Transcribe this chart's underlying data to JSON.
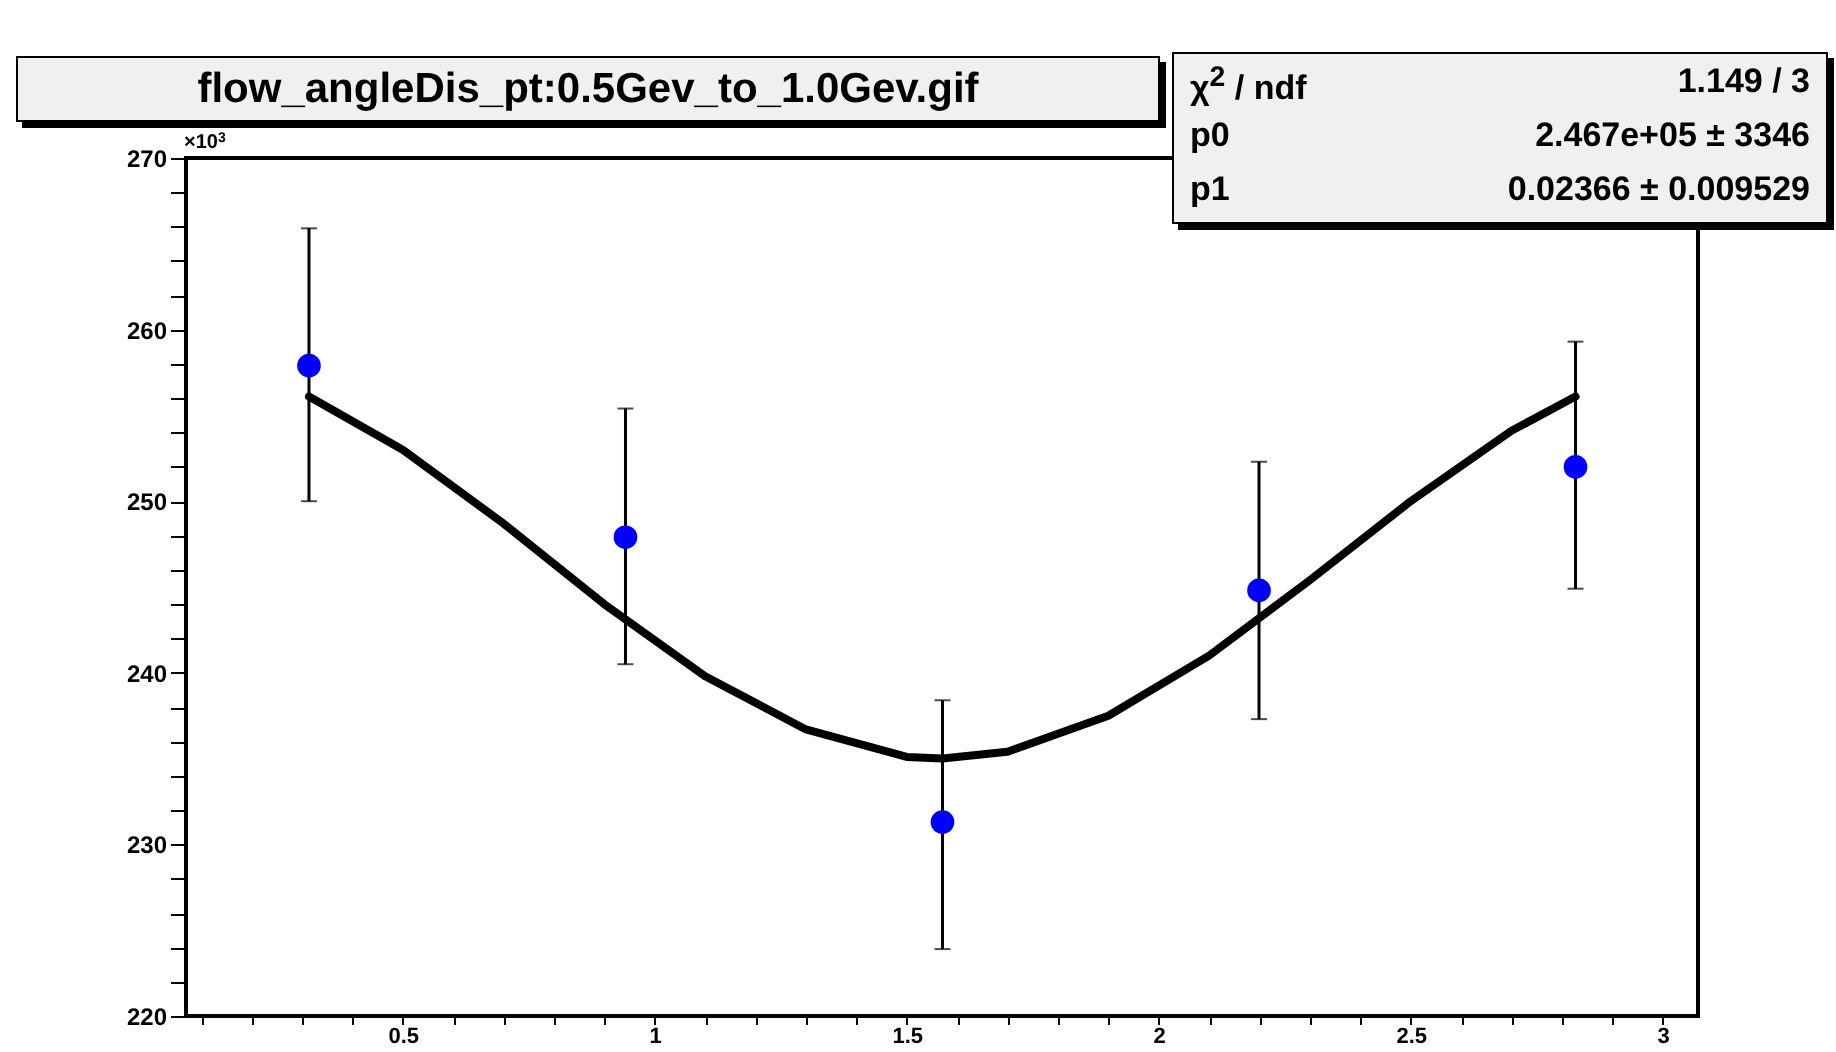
{
  "chart_data": {
    "type": "scatter",
    "title": "flow_angleDis_pt:0.5Gev_to_1.0Gev.gif",
    "annotations": [
      "×10$^{3}$",
      "χ$^{2}$ / ndf",
      "1.149 / 3",
      "p0",
      "2.467e+05 ± 3346",
      "p1",
      "0.02366 ± 0.009529"
    ],
    "xlim": [
      0.07,
      3.07
    ],
    "xticks": [
      {
        "value": 0.1,
        "label": null
      },
      {
        "value": 0.2,
        "label": null
      },
      {
        "value": 0.3,
        "label": null
      },
      {
        "value": 0.4,
        "label": null
      },
      0.5,
      {
        "value": 0.6,
        "label": null
      },
      {
        "value": 0.7,
        "label": null
      },
      {
        "value": 0.8,
        "label": null
      },
      {
        "value": 0.9,
        "label": null
      },
      1,
      {
        "value": 1.1,
        "label": null
      },
      {
        "value": 1.2,
        "label": null
      },
      {
        "value": 1.3,
        "label": null
      },
      {
        "value": 1.4,
        "label": null
      },
      1.5,
      {
        "value": 1.6,
        "label": null
      },
      {
        "value": 1.7,
        "label": null
      },
      {
        "value": 1.8,
        "label": null
      },
      {
        "value": 1.9,
        "label": null
      },
      2,
      {
        "value": 2.1,
        "label": null
      },
      {
        "value": 2.2,
        "label": null
      },
      {
        "value": 2.3,
        "label": null
      },
      {
        "value": 2.4,
        "label": null
      },
      2.5,
      {
        "value": 2.6,
        "label": null
      },
      {
        "value": 2.7,
        "label": null
      },
      {
        "value": 2.8,
        "label": null
      },
      {
        "value": 2.9,
        "label": null
      },
      3
    ],
    "ylim": [
      220,
      270
    ],
    "yticks": [
      220,
      {
        "value": 222,
        "label": null
      },
      {
        "value": 224,
        "label": null
      },
      {
        "value": 226,
        "label": null
      },
      {
        "value": 228,
        "label": null
      },
      230,
      {
        "value": 232,
        "label": null
      },
      {
        "value": 234,
        "label": null
      },
      {
        "value": 236,
        "label": null
      },
      {
        "value": 238,
        "label": null
      },
      240,
      {
        "value": 242,
        "label": null
      },
      {
        "value": 244,
        "label": null
      },
      {
        "value": 246,
        "label": null
      },
      {
        "value": 248,
        "label": null
      },
      250,
      {
        "value": 252,
        "label": null
      },
      {
        "value": 254,
        "label": null
      },
      {
        "value": 256,
        "label": null
      },
      {
        "value": 258,
        "label": null
      },
      260,
      {
        "value": 262,
        "label": null
      },
      {
        "value": 264,
        "label": null
      },
      {
        "value": 266,
        "label": null
      },
      {
        "value": 268,
        "label": null
      },
      270
    ],
    "marker": "circle",
    "series": [
      {
        "type": "scatter",
        "color": "#0000ff",
        "x": [
          0.314,
          0.942,
          1.571,
          2.199,
          2.827
        ],
        "values": [
          257.9,
          247.9,
          231.3,
          244.8,
          252.0
        ],
        "errors": [
          [
            250.0,
            265.9
          ],
          [
            240.5,
            255.4
          ],
          [
            223.9,
            238.4
          ],
          [
            237.3,
            252.3
          ],
          [
            244.9,
            259.3
          ]
        ]
      },
      {
        "type": "line",
        "color": "#000000",
        "marker": "none",
        "x": [
          0.314,
          0.5,
          0.7,
          0.9,
          1.1,
          1.3,
          1.5,
          1.571,
          1.7,
          1.9,
          2.1,
          2.3,
          2.5,
          2.7,
          2.827
        ],
        "values": [
          256.1,
          253.0,
          248.7,
          244.0,
          239.8,
          236.7,
          235.1,
          235.0,
          235.4,
          237.5,
          241.0,
          245.4,
          250.0,
          254.1,
          256.1
        ]
      }
    ]
  }
}
